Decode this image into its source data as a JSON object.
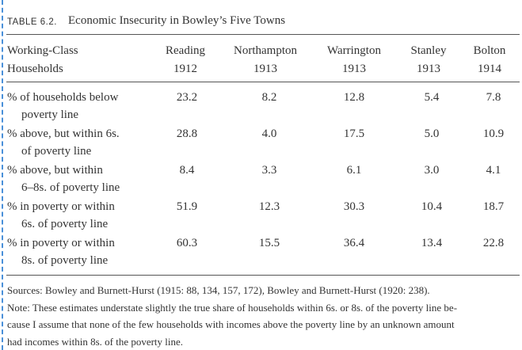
{
  "table": {
    "label": "TABLE 6.2.",
    "title": "Economic Insecurity in Bowley’s Five Towns",
    "stub_header": [
      "Working-Class",
      "Households"
    ],
    "columns": [
      {
        "name": "Reading",
        "year": "1912"
      },
      {
        "name": "Northampton",
        "year": "1913"
      },
      {
        "name": "Warrington",
        "year": "1913"
      },
      {
        "name": "Stanley",
        "year": "1913"
      },
      {
        "name": "Bolton",
        "year": "1914"
      }
    ],
    "rows": [
      {
        "label": [
          "% of households below",
          "poverty line"
        ],
        "values": [
          "23.2",
          "8.2",
          "12.8",
          "5.4",
          "7.8"
        ]
      },
      {
        "label": [
          "% above, but within 6s.",
          "of poverty line"
        ],
        "values": [
          "28.8",
          "4.0",
          "17.5",
          "5.0",
          "10.9"
        ]
      },
      {
        "label": [
          "% above, but within",
          "6–8s. of poverty line"
        ],
        "values": [
          "8.4",
          "3.3",
          "6.1",
          "3.0",
          "4.1"
        ]
      },
      {
        "label": [
          "% in poverty or within",
          "6s. of poverty line"
        ],
        "values": [
          "51.9",
          "12.3",
          "30.3",
          "10.4",
          "18.7"
        ]
      },
      {
        "label": [
          "% in poverty or within",
          "8s. of poverty line"
        ],
        "values": [
          "60.3",
          "15.5",
          "36.4",
          "13.4",
          "22.8"
        ]
      }
    ],
    "notes": [
      "Sources: Bowley and Burnett-Hurst (1915: 88, 134, 157, 172), Bowley and Burnett-Hurst (1920: 238).",
      "Note: These estimates understate slightly the true share of households within 6s. or 8s. of the poverty line be-",
      "cause I assume that none of the few households with incomes above the poverty line by an unknown amount",
      "had incomes within 8s. of the poverty line."
    ]
  }
}
